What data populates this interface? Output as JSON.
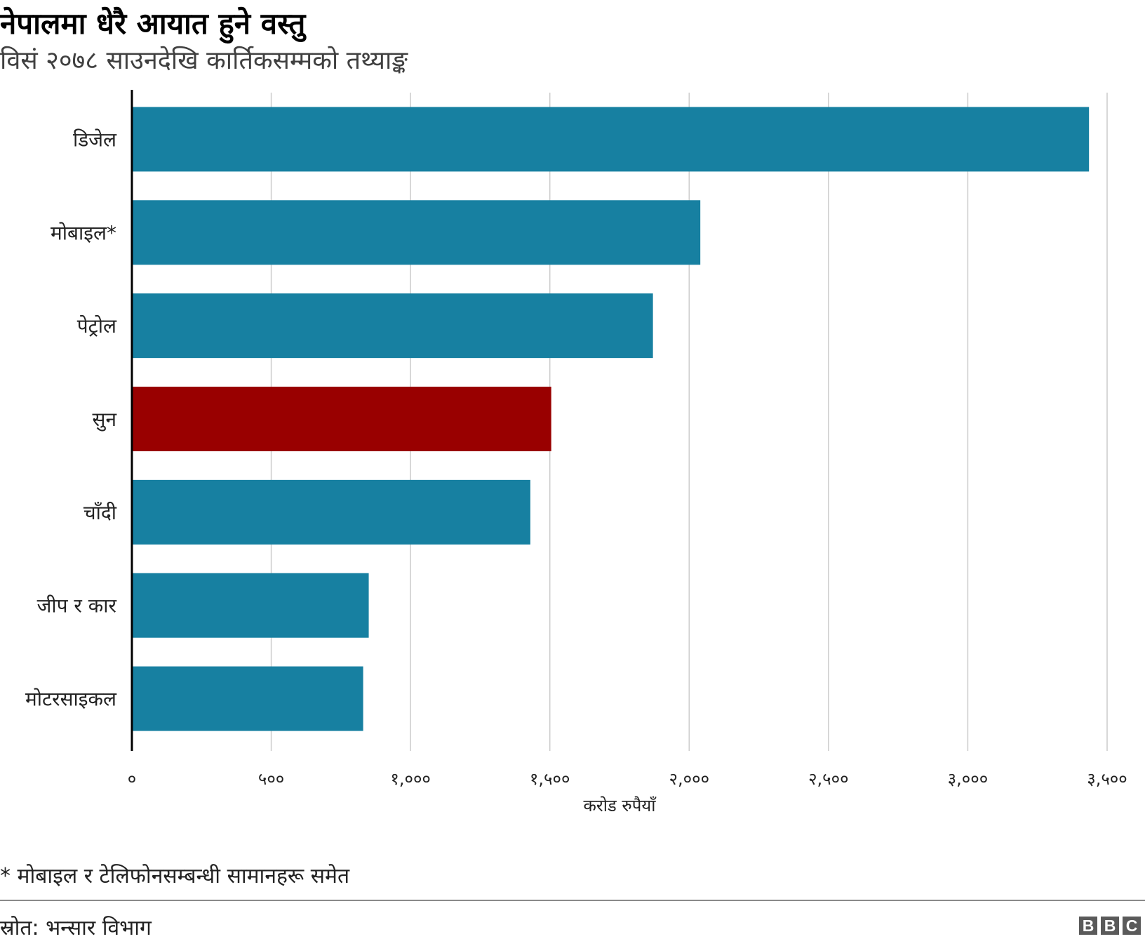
{
  "title": "नेपालमा धेरै आयात हुने वस्तु",
  "subtitle": "विसं २०७८ साउनदेखि कार्तिकसम्मको तथ्याङ्क",
  "footnote": "* मोबाइल र टेलिफोनसम्बन्धी सामानहरू समेत",
  "source": "स्रोत: भन्सार विभाग",
  "logo": [
    "B",
    "B",
    "C"
  ],
  "colors": {
    "bar": "#1780a1",
    "highlight": "#990000",
    "grid": "#cccccc",
    "axis": "#000000"
  },
  "chart_data": {
    "type": "bar",
    "orientation": "horizontal",
    "categories": [
      "डिजेल",
      "मोबाइल*",
      "पेट्रोल",
      "सुन",
      "चाँदी",
      "जीप र कार",
      "मोटरसाइकल"
    ],
    "values": [
      3435,
      2040,
      1870,
      1505,
      1430,
      850,
      830
    ],
    "highlight_index": 3,
    "xlabel": "करोड रुपैयाँ",
    "ylabel": "",
    "xlim": [
      0,
      3500
    ],
    "xticks": [
      0,
      500,
      1000,
      1500,
      2000,
      2500,
      3000,
      3500
    ],
    "xtick_labels": [
      "०",
      "५००",
      "१,०००",
      "१,५००",
      "२,०००",
      "२,५००",
      "३,०००",
      "३,५००"
    ],
    "grid": "vertical",
    "legend": "none"
  }
}
